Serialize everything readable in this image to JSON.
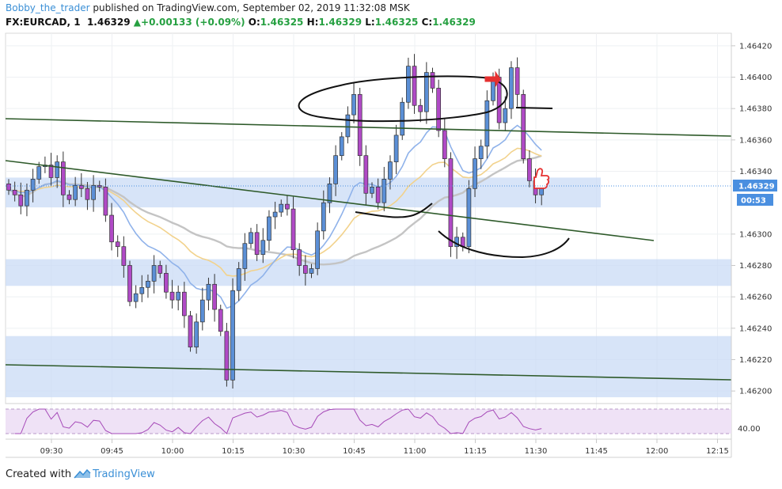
{
  "header": {
    "author": "Bobby_the_trader",
    "published": "published on TradingView.com, September 02, 2019 11:32:08 MSK",
    "symbol": "FX:EURCAD, 1",
    "last": "1.46329",
    "change": "+0.00133 (+0.09%)",
    "o_label": "O:",
    "o": "1.46325",
    "h_label": "H:",
    "h": "1.46329",
    "l_label": "L:",
    "l": "1.46325",
    "c_label": "C:",
    "c": "1.46329"
  },
  "footer": {
    "created_with": "Created with",
    "brand": "TradingView"
  },
  "chart_data": {
    "type": "candlestick",
    "symbol": "FX:EURCAD",
    "interval": "1",
    "price_ticks": [
      "1.46420",
      "1.46400",
      "1.46380",
      "1.46360",
      "1.46340",
      "1.46300",
      "1.46280",
      "1.46260",
      "1.46240",
      "1.46220",
      "1.46200"
    ],
    "ylim": [
      1.46192,
      1.46428
    ],
    "time_ticks": [
      "09:30",
      "09:45",
      "10:00",
      "10:15",
      "10:30",
      "10:45",
      "11:00",
      "11:15",
      "11:30",
      "11:45",
      "12:00",
      "12:15"
    ],
    "last_price_label": "1.46329",
    "countdown_label": "00:53",
    "rsi_label": "40.00",
    "colors": {
      "up": "#5b8fd6",
      "down": "#b04ac6",
      "zone": "#c9dbf5",
      "trendline": "#2e5a2a",
      "ema_blue": "#8fb2ea",
      "ema_orange": "#f2d28c",
      "ema_gray": "#c4c4c4",
      "rsi": "#a64ab8",
      "price_tag": "#4a8fe0",
      "arrow": "#e53030"
    },
    "zones": [
      [
        1.46317,
        1.46336
      ],
      [
        1.46267,
        1.46284
      ],
      [
        1.46196,
        1.46235
      ]
    ],
    "closes": [
      1.46328,
      1.46325,
      1.46318,
      1.46328,
      1.46335,
      1.46343,
      1.46344,
      1.46336,
      1.46346,
      1.46325,
      1.46322,
      1.46331,
      1.46329,
      1.46322,
      1.46331,
      1.4633,
      1.46312,
      1.46295,
      1.46292,
      1.4628,
      1.46257,
      1.46262,
      1.46266,
      1.4627,
      1.4628,
      1.46275,
      1.46263,
      1.46258,
      1.46263,
      1.46248,
      1.46228,
      1.46244,
      1.46258,
      1.46268,
      1.46252,
      1.46238,
      1.46207,
      1.46264,
      1.46278,
      1.46294,
      1.46301,
      1.46287,
      1.46296,
      1.46311,
      1.46314,
      1.46319,
      1.46316,
      1.4629,
      1.4628,
      1.46275,
      1.46278,
      1.46302,
      1.4632,
      1.46332,
      1.4635,
      1.46362,
      1.46376,
      1.46389,
      1.4635,
      1.46326,
      1.4633,
      1.4632,
      1.46335,
      1.46346,
      1.46363,
      1.46384,
      1.46407,
      1.46382,
      1.46378,
      1.46403,
      1.46393,
      1.46366,
      1.46348,
      1.46292,
      1.46298,
      1.46292,
      1.46329,
      1.46348,
      1.46356,
      1.46385,
      1.464,
      1.46371,
      1.4638,
      1.46406,
      1.46389,
      1.46348,
      1.46334,
      1.46325,
      1.46329
    ]
  }
}
